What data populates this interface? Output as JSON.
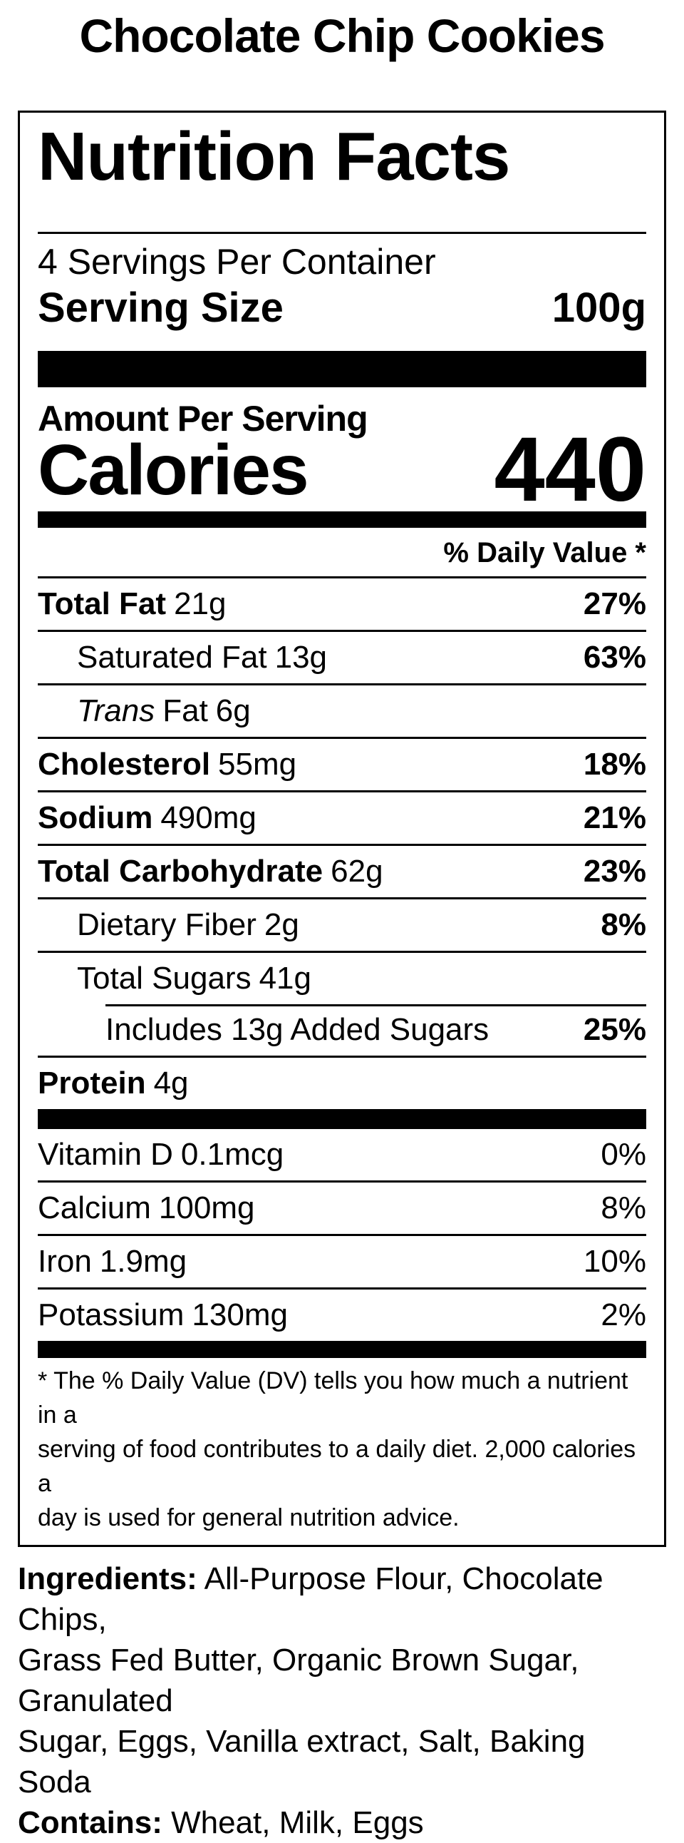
{
  "colors": {
    "ink": "#000000",
    "paper": "#ffffff"
  },
  "page_title": "Chocolate Chip Cookies",
  "label": {
    "title": "Nutrition Facts",
    "servings_per_container": "4 Servings Per Container",
    "serving_size_label": "Serving Size",
    "serving_size_value": "100g",
    "amount_per_serving": "Amount Per Serving",
    "calories_label": "Calories",
    "calories_value": "440",
    "daily_value_header": "% Daily Value *",
    "rows": [
      {
        "name": "Total Fat",
        "amount": "21g",
        "dv": "27%"
      },
      {
        "name": "Saturated Fat",
        "amount": "13g",
        "dv": "63%"
      },
      {
        "italic": "Trans",
        "name": "Fat",
        "amount": "6g",
        "dv": ""
      },
      {
        "name": "Cholesterol",
        "amount": "55mg",
        "dv": "18%"
      },
      {
        "name": "Sodium",
        "amount": "490mg",
        "dv": "21%"
      },
      {
        "name": "Total Carbohydrate",
        "amount": "62g",
        "dv": "23%"
      },
      {
        "name": "Dietary Fiber",
        "amount": "2g",
        "dv": "8%"
      },
      {
        "name": "Total Sugars",
        "amount": "41g",
        "dv": ""
      },
      {
        "name": "Includes 13g Added Sugars",
        "amount": "",
        "dv": "25%"
      },
      {
        "name": "Protein",
        "amount": "4g",
        "dv": ""
      }
    ],
    "vitamins": [
      {
        "name": "Vitamin D",
        "amount": "0.1mcg",
        "dv": "0%"
      },
      {
        "name": "Calcium",
        "amount": "100mg",
        "dv": "8%"
      },
      {
        "name": "Iron",
        "amount": "1.9mg",
        "dv": "10%"
      },
      {
        "name": "Potassium",
        "amount": "130mg",
        "dv": "2%"
      }
    ],
    "footnote_lines": [
      "* The % Daily Value (DV) tells you how much a nutrient in a",
      "serving of food contributes to a daily diet. 2,000 calories a",
      "day is used for general nutrition advice."
    ]
  },
  "ingredients_lines": [
    {
      "bold": "Ingredients:",
      "rest": " All-Purpose Flour, Chocolate Chips,"
    },
    {
      "bold": "",
      "rest": "Grass Fed Butter, Organic Brown Sugar, Granulated"
    },
    {
      "bold": "",
      "rest": "Sugar, Eggs, Vanilla extract, Salt, Baking Soda"
    },
    {
      "bold": "Contains:",
      "rest": " Wheat, Milk, Eggs"
    }
  ]
}
